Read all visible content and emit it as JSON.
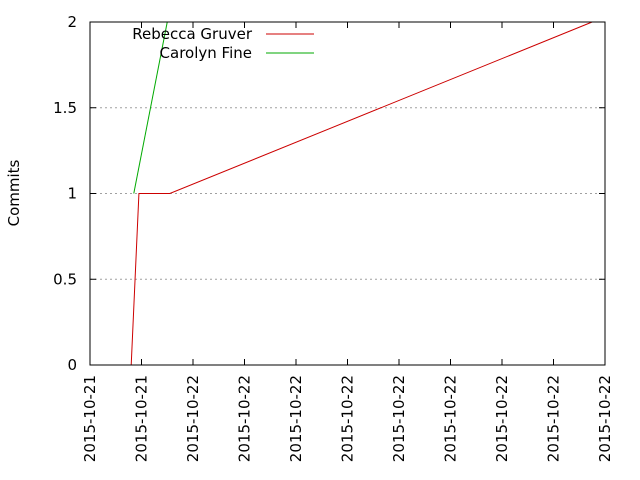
{
  "chart_data": {
    "type": "line",
    "ylabel": "Commits",
    "ylim": [
      0,
      2
    ],
    "y_ticks": [
      "0",
      "0.5",
      "1",
      "1.5",
      "2"
    ],
    "y_tick_values": [
      0,
      0.5,
      1,
      1.5,
      2
    ],
    "x_ticks": [
      "2015-10-21",
      "2015-10-21",
      "2015-10-22",
      "2015-10-22",
      "2015-10-22",
      "2015-10-22",
      "2015-10-22",
      "2015-10-22",
      "2015-10-22",
      "2015-10-22",
      "2015-10-22"
    ],
    "x_range": [
      0,
      10
    ],
    "grid": "horizontal-dotted",
    "legend_position": "top-left",
    "series": [
      {
        "name": "Rebecca Gruver",
        "color": "#cc0000",
        "x": [
          0.8,
          0.95,
          1.55,
          9.75
        ],
        "y": [
          0,
          1,
          1,
          2
        ]
      },
      {
        "name": "Carolyn Fine",
        "color": "#00aa00",
        "x": [
          0.85,
          1.5
        ],
        "y": [
          1,
          2
        ]
      }
    ]
  }
}
